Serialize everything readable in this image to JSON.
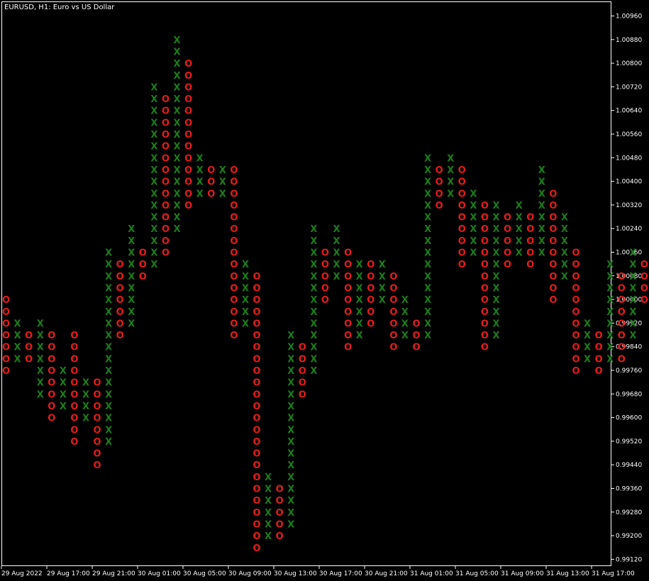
{
  "chart_title": "EURUSD, H1:  Euro vs US Dollar",
  "colors": {
    "background": "#000000",
    "frame": "#ffffff",
    "x_mark": "#1c7d1c",
    "o_mark": "#e81c1c",
    "text": "#ffffff"
  },
  "chart_data": {
    "type": "point-and-figure",
    "title": "EURUSD, H1:  Euro vs US Dollar",
    "box_size": 0.0004,
    "ylim": [
      0.9908,
      1.0098
    ],
    "price_ticks": [
      "1.00960",
      "1.00880",
      "1.00800",
      "1.00720",
      "1.00640",
      "1.00560",
      "1.00480",
      "1.00400",
      "1.00320",
      "1.00240",
      "1.00160",
      "1.00080",
      "1.00000",
      "0.99920",
      "0.99840",
      "0.99760",
      "0.99680",
      "0.99600",
      "0.99520",
      "0.99440",
      "0.99360",
      "0.99280",
      "0.99200",
      "0.99120"
    ],
    "time_labels": [
      "29 Aug 2022",
      "29 Aug 17:00",
      "29 Aug 21:00",
      "30 Aug 01:00",
      "30 Aug 05:00",
      "30 Aug 09:00",
      "30 Aug 13:00",
      "30 Aug 17:00",
      "30 Aug 21:00",
      "31 Aug 01:00",
      "31 Aug 05:00",
      "31 Aug 09:00",
      "31 Aug 13:00",
      "31 Aug 17:00"
    ],
    "columns": [
      {
        "t": "O",
        "from": 0.9976,
        "to": 1.0
      },
      {
        "t": "X",
        "from": 0.998,
        "to": 0.9992
      },
      {
        "t": "O",
        "from": 0.998,
        "to": 0.9988
      },
      {
        "t": "X",
        "from": 0.9968,
        "to": 0.9992
      },
      {
        "t": "O",
        "from": 0.996,
        "to": 0.9988
      },
      {
        "t": "X",
        "from": 0.9964,
        "to": 0.9976
      },
      {
        "t": "O",
        "from": 0.9952,
        "to": 0.9988
      },
      {
        "t": "X",
        "from": 0.996,
        "to": 0.9972
      },
      {
        "t": "O",
        "from": 0.9944,
        "to": 0.9972
      },
      {
        "t": "X",
        "from": 0.9952,
        "to": 1.0016
      },
      {
        "t": "O",
        "from": 0.9988,
        "to": 1.0012
      },
      {
        "t": "X",
        "from": 0.9992,
        "to": 1.0024
      },
      {
        "t": "O",
        "from": 1.0008,
        "to": 1.0016
      },
      {
        "t": "X",
        "from": 1.0012,
        "to": 1.0072
      },
      {
        "t": "O",
        "from": 1.0016,
        "to": 1.0068
      },
      {
        "t": "X",
        "from": 1.0024,
        "to": 1.0088
      },
      {
        "t": "O",
        "from": 1.0032,
        "to": 1.008
      },
      {
        "t": "X",
        "from": 1.0036,
        "to": 1.0048
      },
      {
        "t": "O",
        "from": 1.0036,
        "to": 1.0044
      },
      {
        "t": "X",
        "from": 1.0036,
        "to": 1.0044
      },
      {
        "t": "O",
        "from": 0.9988,
        "to": 1.0044
      },
      {
        "t": "X",
        "from": 0.9992,
        "to": 1.0012
      },
      {
        "t": "O",
        "from": 0.9916,
        "to": 1.0008
      },
      {
        "t": "X",
        "from": 0.992,
        "to": 0.994
      },
      {
        "t": "O",
        "from": 0.992,
        "to": 0.9936
      },
      {
        "t": "X",
        "from": 0.9924,
        "to": 0.9988
      },
      {
        "t": "O",
        "from": 0.9968,
        "to": 0.9984
      },
      {
        "t": "X",
        "from": 0.9976,
        "to": 1.0024
      },
      {
        "t": "O",
        "from": 1.0,
        "to": 1.0016
      },
      {
        "t": "X",
        "from": 1.0008,
        "to": 1.0024
      },
      {
        "t": "O",
        "from": 0.9984,
        "to": 1.0016
      },
      {
        "t": "X",
        "from": 0.9988,
        "to": 1.0012
      },
      {
        "t": "O",
        "from": 0.9992,
        "to": 1.0012
      },
      {
        "t": "X",
        "from": 1.0,
        "to": 1.0012
      },
      {
        "t": "O",
        "from": 0.9984,
        "to": 1.0008
      },
      {
        "t": "X",
        "from": 0.9988,
        "to": 1.0
      },
      {
        "t": "O",
        "from": 0.9984,
        "to": 0.9992
      },
      {
        "t": "X",
        "from": 0.9988,
        "to": 1.0048
      },
      {
        "t": "O",
        "from": 1.0032,
        "to": 1.0044
      },
      {
        "t": "X",
        "from": 1.0036,
        "to": 1.0048
      },
      {
        "t": "O",
        "from": 1.0012,
        "to": 1.0044
      },
      {
        "t": "X",
        "from": 1.0016,
        "to": 1.0036
      },
      {
        "t": "O",
        "from": 0.9984,
        "to": 1.0032
      },
      {
        "t": "X",
        "from": 0.9988,
        "to": 1.0032
      },
      {
        "t": "O",
        "from": 1.0012,
        "to": 1.0028
      },
      {
        "t": "X",
        "from": 1.0016,
        "to": 1.0032
      },
      {
        "t": "O",
        "from": 1.0012,
        "to": 1.0028
      },
      {
        "t": "X",
        "from": 1.0016,
        "to": 1.0044
      },
      {
        "t": "O",
        "from": 1.0,
        "to": 1.0036
      },
      {
        "t": "X",
        "from": 1.0008,
        "to": 1.0028
      },
      {
        "t": "O",
        "from": 0.9976,
        "to": 1.0016
      },
      {
        "t": "X",
        "from": 0.998,
        "to": 0.9992
      },
      {
        "t": "O",
        "from": 0.9976,
        "to": 0.9988
      },
      {
        "t": "X",
        "from": 0.998,
        "to": 1.0012
      },
      {
        "t": "O",
        "from": 0.998,
        "to": 1.0008
      },
      {
        "t": "X",
        "from": 0.9988,
        "to": 1.0016
      },
      {
        "t": "O",
        "from": 1.0,
        "to": 1.0012
      }
    ]
  }
}
